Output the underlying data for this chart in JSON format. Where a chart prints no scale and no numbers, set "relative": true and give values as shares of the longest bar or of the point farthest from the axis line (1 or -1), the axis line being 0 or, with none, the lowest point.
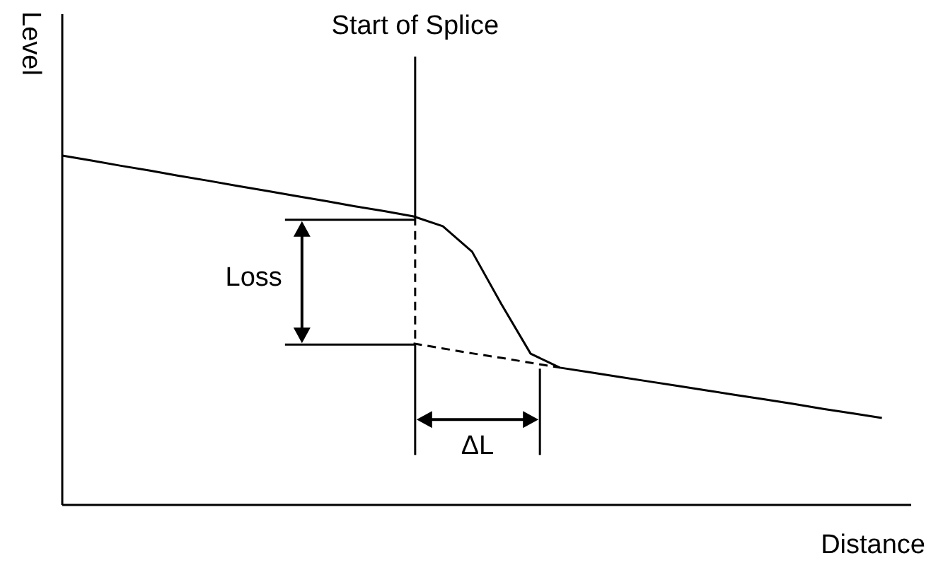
{
  "chart_data": {
    "type": "line",
    "relative": true,
    "xlabel": "Distance",
    "ylabel": "Level",
    "categories": [
      null,
      null,
      null,
      null,
      null,
      null,
      null,
      null,
      null,
      null,
      null,
      null,
      null,
      null,
      null,
      null,
      null,
      null,
      null,
      null,
      null,
      null,
      null,
      null,
      null,
      null,
      null,
      null,
      null,
      null
    ],
    "series": [
      {
        "color": "#000000",
        "line_style": "solid",
        "values": [
          1.0,
          0.986,
          0.971,
          0.957,
          0.942,
          0.928,
          0.913,
          0.899,
          0.884,
          0.87,
          0.855,
          0.841,
          0.826,
          0.798,
          0.725,
          0.575,
          0.433,
          0.393,
          0.38,
          0.367,
          0.354,
          0.341,
          0.328,
          0.315,
          0.302,
          0.289,
          0.275,
          0.262,
          0.249,
          null
        ]
      },
      {
        "color": "#000000",
        "line_style": "dashed",
        "values": [
          null,
          null,
          null,
          null,
          null,
          null,
          null,
          null,
          null,
          null,
          null,
          null,
          0.462,
          0.448,
          0.434,
          0.421,
          0.407,
          0.393,
          null,
          null,
          null,
          null,
          null,
          null,
          null,
          null,
          null,
          null,
          null,
          null
        ]
      }
    ],
    "annotations": [
      "Start of Splice",
      "Loss",
      "ΔL"
    ],
    "grid": false,
    "legend": false,
    "marker": "none"
  }
}
